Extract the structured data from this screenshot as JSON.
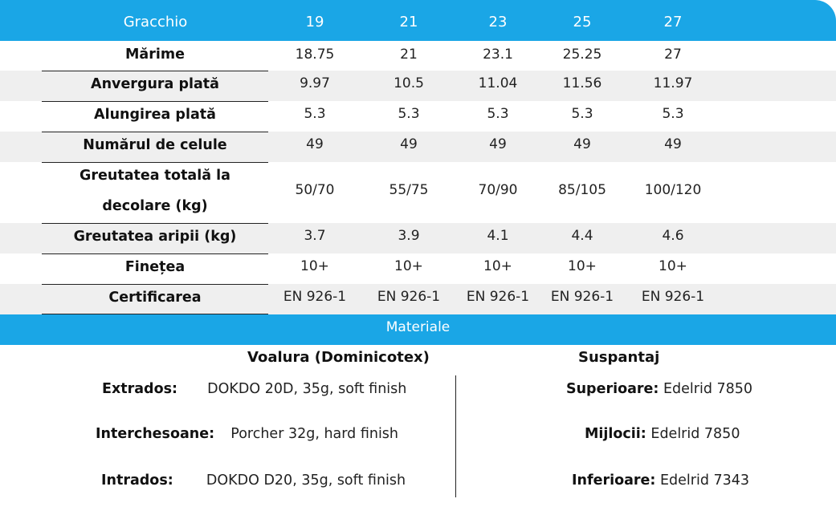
{
  "header": {
    "model": "Gracchio",
    "sizes": [
      "19",
      "21",
      "23",
      "25",
      "27"
    ]
  },
  "rows": [
    {
      "label": "Mărime",
      "values": [
        "18.75",
        "21",
        "23.1",
        "25.25",
        "27"
      ]
    },
    {
      "label": "Anvergura plată",
      "values": [
        "9.97",
        "10.5",
        "11.04",
        "11.56",
        "11.97"
      ]
    },
    {
      "label": "Alungirea plată",
      "values": [
        "5.3",
        "5.3",
        "5.3",
        "5.3",
        "5.3"
      ]
    },
    {
      "label": "Numărul de celule",
      "values": [
        "49",
        "49",
        "49",
        "49",
        "49"
      ]
    },
    {
      "label_line1": "Greutatea totală la",
      "label_line2": "decolare (kg)",
      "values": [
        "50/70",
        "55/75",
        "70/90",
        "85/105",
        "100/120"
      ]
    },
    {
      "label": "Greutatea aripii (kg)",
      "values": [
        "3.7",
        "3.9",
        "4.1",
        "4.4",
        "4.6"
      ]
    },
    {
      "label": "Finețea",
      "values": [
        "10+",
        "10+",
        "10+",
        "10+",
        "10+"
      ]
    },
    {
      "label": "Certificarea",
      "values": [
        "EN 926-1",
        "EN 926-1",
        "EN 926-1",
        "EN 926-1",
        "EN 926-1"
      ]
    }
  ],
  "materials": {
    "title": "Materiale",
    "canopy": {
      "heading": "Voalura (Dominicotex)",
      "items": [
        {
          "label": "Extrados:",
          "value": "DOKDO 20D, 35g, soft finish"
        },
        {
          "label": "Interchesoane:",
          "value": "Porcher 32g, hard finish"
        },
        {
          "label": "Intrados:",
          "value": "DOKDO D20, 35g, soft finish"
        }
      ]
    },
    "lines": {
      "heading": "Suspantaj",
      "items": [
        {
          "label": "Superioare:",
          "value": "Edelrid 7850"
        },
        {
          "label": "Mijlocii:",
          "value": "Edelrid 7850"
        },
        {
          "label": "Inferioare:",
          "value": "Edelrid 7343"
        }
      ]
    }
  },
  "colors": {
    "accent": "#1aa6e6",
    "row_shade": "#efefef"
  }
}
